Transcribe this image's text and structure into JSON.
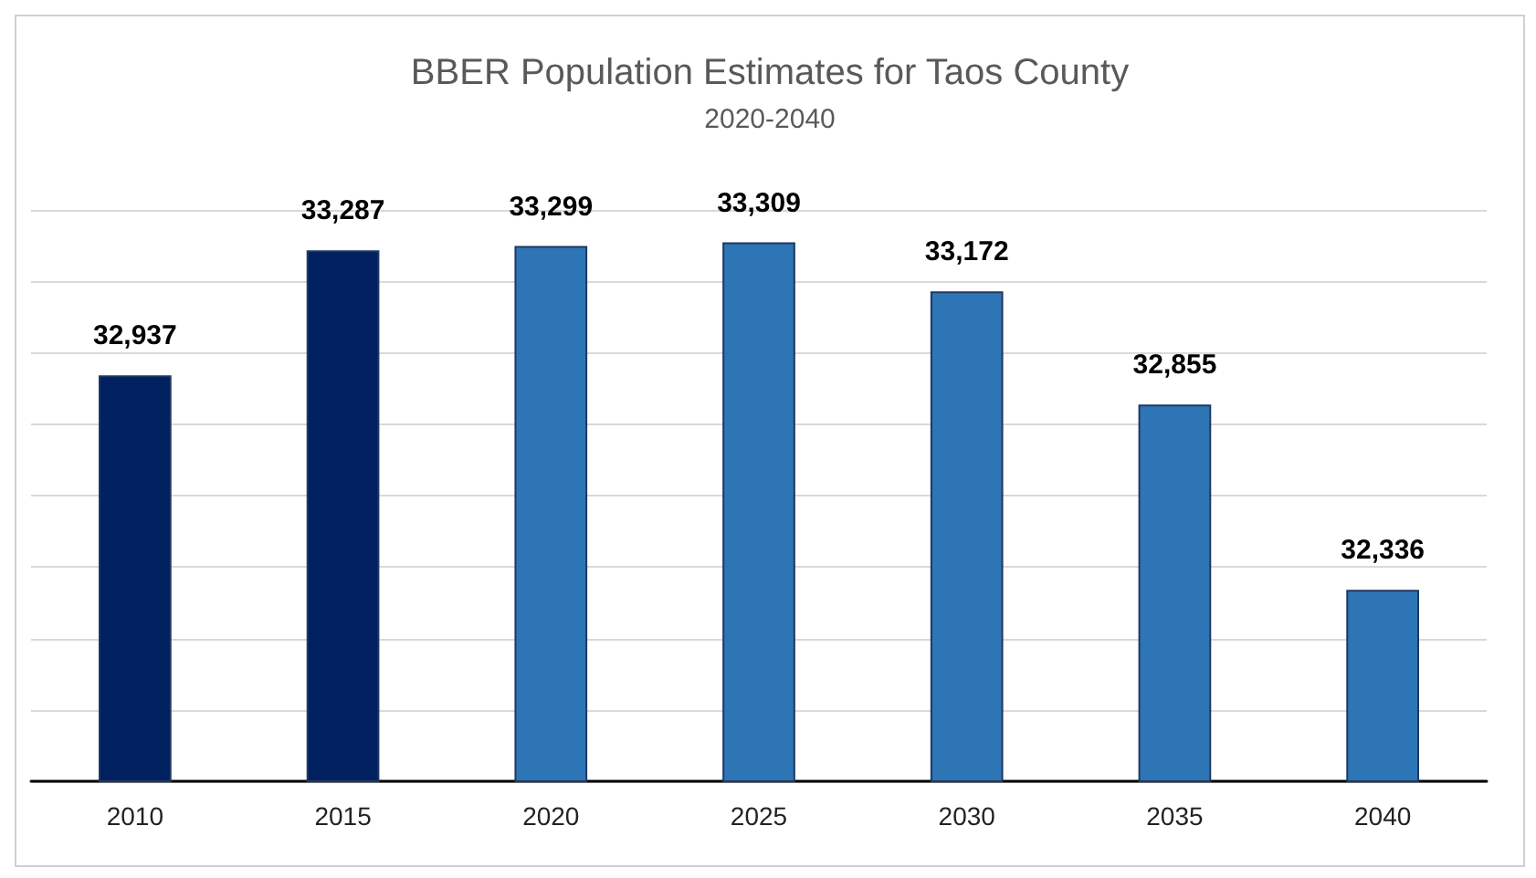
{
  "chart_data": {
    "type": "bar",
    "title": "BBER Population Estimates for Taos County",
    "subtitle": "2020-2040",
    "categories": [
      "2010",
      "2015",
      "2020",
      "2025",
      "2030",
      "2035",
      "2040"
    ],
    "values": [
      32937,
      33287,
      33299,
      33309,
      33172,
      32855,
      32336
    ],
    "value_labels": [
      "32,937",
      "33,287",
      "33,299",
      "33,309",
      "33,172",
      "32,855",
      "32,336"
    ],
    "colors": [
      "#002060",
      "#002060",
      "#2e75b6",
      "#2e75b6",
      "#2e75b6",
      "#2e75b6",
      "#2e75b6"
    ],
    "ylim": [
      31800,
      33400
    ],
    "yticks": [
      {
        "value": 31800,
        "label": null
      },
      {
        "value": 32000,
        "label": null
      },
      {
        "value": 32200,
        "label": null
      },
      {
        "value": 32400,
        "label": null
      },
      {
        "value": 32600,
        "label": null
      },
      {
        "value": 32800,
        "label": null
      },
      {
        "value": 33000,
        "label": null
      },
      {
        "value": 33200,
        "label": null
      },
      {
        "value": 33400,
        "label": null
      }
    ],
    "tick_labels": "x",
    "grid": "y"
  }
}
